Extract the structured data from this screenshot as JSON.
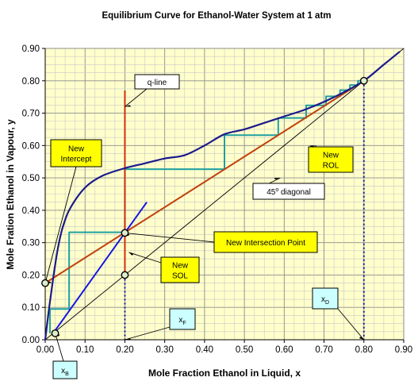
{
  "chart_data": {
    "type": "line",
    "title": "Equilibrium Curve for Ethanol-Water System at 1 atm",
    "xlabel": "Mole Fraction Ethanol in Liquid, x",
    "ylabel": "Mole Fration Ethanol in Vapour, y",
    "xlim": [
      0,
      0.9
    ],
    "ylim": [
      0,
      0.9
    ],
    "x_ticks": [
      "0.00",
      "0.10",
      "0.20",
      "0.30",
      "0.40",
      "0.50",
      "0.60",
      "0.70",
      "0.80",
      "0.90"
    ],
    "y_ticks": [
      "0.00",
      "0.10",
      "0.20",
      "0.30",
      "0.40",
      "0.50",
      "0.60",
      "0.70",
      "0.80",
      "0.90"
    ],
    "grid": true,
    "series": [
      {
        "key": "equilibrium",
        "color": "#1a1a8c",
        "points": [
          [
            0,
            0
          ],
          [
            0.01,
            0.1
          ],
          [
            0.02,
            0.19
          ],
          [
            0.03,
            0.27
          ],
          [
            0.04,
            0.33
          ],
          [
            0.05,
            0.37
          ],
          [
            0.06,
            0.4
          ],
          [
            0.08,
            0.44
          ],
          [
            0.1,
            0.47
          ],
          [
            0.12,
            0.49
          ],
          [
            0.15,
            0.51
          ],
          [
            0.2,
            0.53
          ],
          [
            0.25,
            0.545
          ],
          [
            0.3,
            0.56
          ],
          [
            0.35,
            0.57
          ],
          [
            0.4,
            0.6
          ],
          [
            0.45,
            0.635
          ],
          [
            0.5,
            0.65
          ],
          [
            0.55,
            0.67
          ],
          [
            0.6,
            0.69
          ],
          [
            0.65,
            0.71
          ],
          [
            0.7,
            0.735
          ],
          [
            0.75,
            0.765
          ],
          [
            0.8,
            0.8
          ],
          [
            0.85,
            0.85
          ],
          [
            0.89,
            0.89
          ]
        ]
      },
      {
        "key": "diagonal",
        "color": "#000000",
        "points": [
          [
            0,
            0
          ],
          [
            0.9,
            0.9
          ]
        ]
      },
      {
        "key": "rol",
        "color": "#c0400c",
        "points": [
          [
            0,
            0.175
          ],
          [
            0.8,
            0.8
          ]
        ]
      },
      {
        "key": "sol",
        "color": "#1515e0",
        "points": [
          [
            0.02,
            0.02
          ],
          [
            0.255,
            0.425
          ]
        ]
      },
      {
        "key": "qline",
        "color": "#d0300a",
        "points": [
          [
            0.2,
            0.77
          ],
          [
            0.2,
            0.2
          ]
        ]
      },
      {
        "key": "steps",
        "color": "#20a0a0",
        "points": [
          [
            0.8,
            0.8
          ],
          [
            0.785,
            0.8
          ],
          [
            0.785,
            0.787
          ],
          [
            0.765,
            0.787
          ],
          [
            0.765,
            0.771
          ],
          [
            0.74,
            0.771
          ],
          [
            0.74,
            0.752
          ],
          [
            0.705,
            0.752
          ],
          [
            0.705,
            0.724
          ],
          [
            0.655,
            0.724
          ],
          [
            0.655,
            0.685
          ],
          [
            0.585,
            0.685
          ],
          [
            0.585,
            0.632
          ],
          [
            0.45,
            0.632
          ],
          [
            0.45,
            0.527
          ],
          [
            0.2,
            0.527
          ],
          [
            0.2,
            0.332
          ],
          [
            0.06,
            0.332
          ],
          [
            0.06,
            0.095
          ],
          [
            0.012,
            0.095
          ],
          [
            0.012,
            0.02
          ]
        ]
      },
      {
        "key": "xd_drop",
        "color": "#1a1aa0",
        "points": [
          [
            0.8,
            0.8
          ],
          [
            0.8,
            0
          ]
        ]
      },
      {
        "key": "xf_drop",
        "color": "#1a1aa0",
        "points": [
          [
            0.2,
            0.2
          ],
          [
            0.2,
            0
          ]
        ]
      }
    ],
    "markers": [
      {
        "key": "xd",
        "x": 0.8,
        "y": 0.8
      },
      {
        "key": "intersection",
        "x": 0.2,
        "y": 0.33
      },
      {
        "key": "feed",
        "x": 0.2,
        "y": 0.2
      },
      {
        "key": "intercept",
        "x": 0,
        "y": 0.175
      },
      {
        "key": "xb",
        "x": 0.025,
        "y": 0.02
      }
    ],
    "annotations": [
      {
        "key": "new_intercept",
        "lines": [
          "New",
          "Intercept"
        ],
        "style": "yellow",
        "target": [
          0,
          0.175
        ]
      },
      {
        "key": "q_line",
        "lines": [
          "q-line"
        ],
        "style": "white",
        "target": [
          0.2,
          0.72
        ]
      },
      {
        "key": "new_rol",
        "lines": [
          "New",
          "ROL"
        ],
        "style": "yellow",
        "target": [
          0.68,
          0.6
        ]
      },
      {
        "key": "diag",
        "lines": [
          "45",
          "diagonal"
        ],
        "sup": "o",
        "style": "white",
        "target": [
          0.59,
          0.5
        ]
      },
      {
        "key": "new_intersection",
        "lines": [
          "New Intersection Point"
        ],
        "style": "yellow",
        "target": [
          0.2,
          0.33
        ]
      },
      {
        "key": "new_sol",
        "lines": [
          "New",
          "SOL"
        ],
        "style": "yellow",
        "target": [
          0.21,
          0.27
        ]
      },
      {
        "key": "xd_label",
        "lines": [
          "x"
        ],
        "sub": "D",
        "style": "cyan",
        "target": [
          0.8,
          0
        ]
      },
      {
        "key": "xf_label",
        "lines": [
          "x"
        ],
        "sub": "F",
        "style": "cyan",
        "target": [
          0.2,
          0
        ]
      },
      {
        "key": "xb_label",
        "lines": [
          "x"
        ],
        "sub": "B",
        "style": "cyan",
        "target": [
          0.025,
          0.02
        ]
      }
    ]
  }
}
